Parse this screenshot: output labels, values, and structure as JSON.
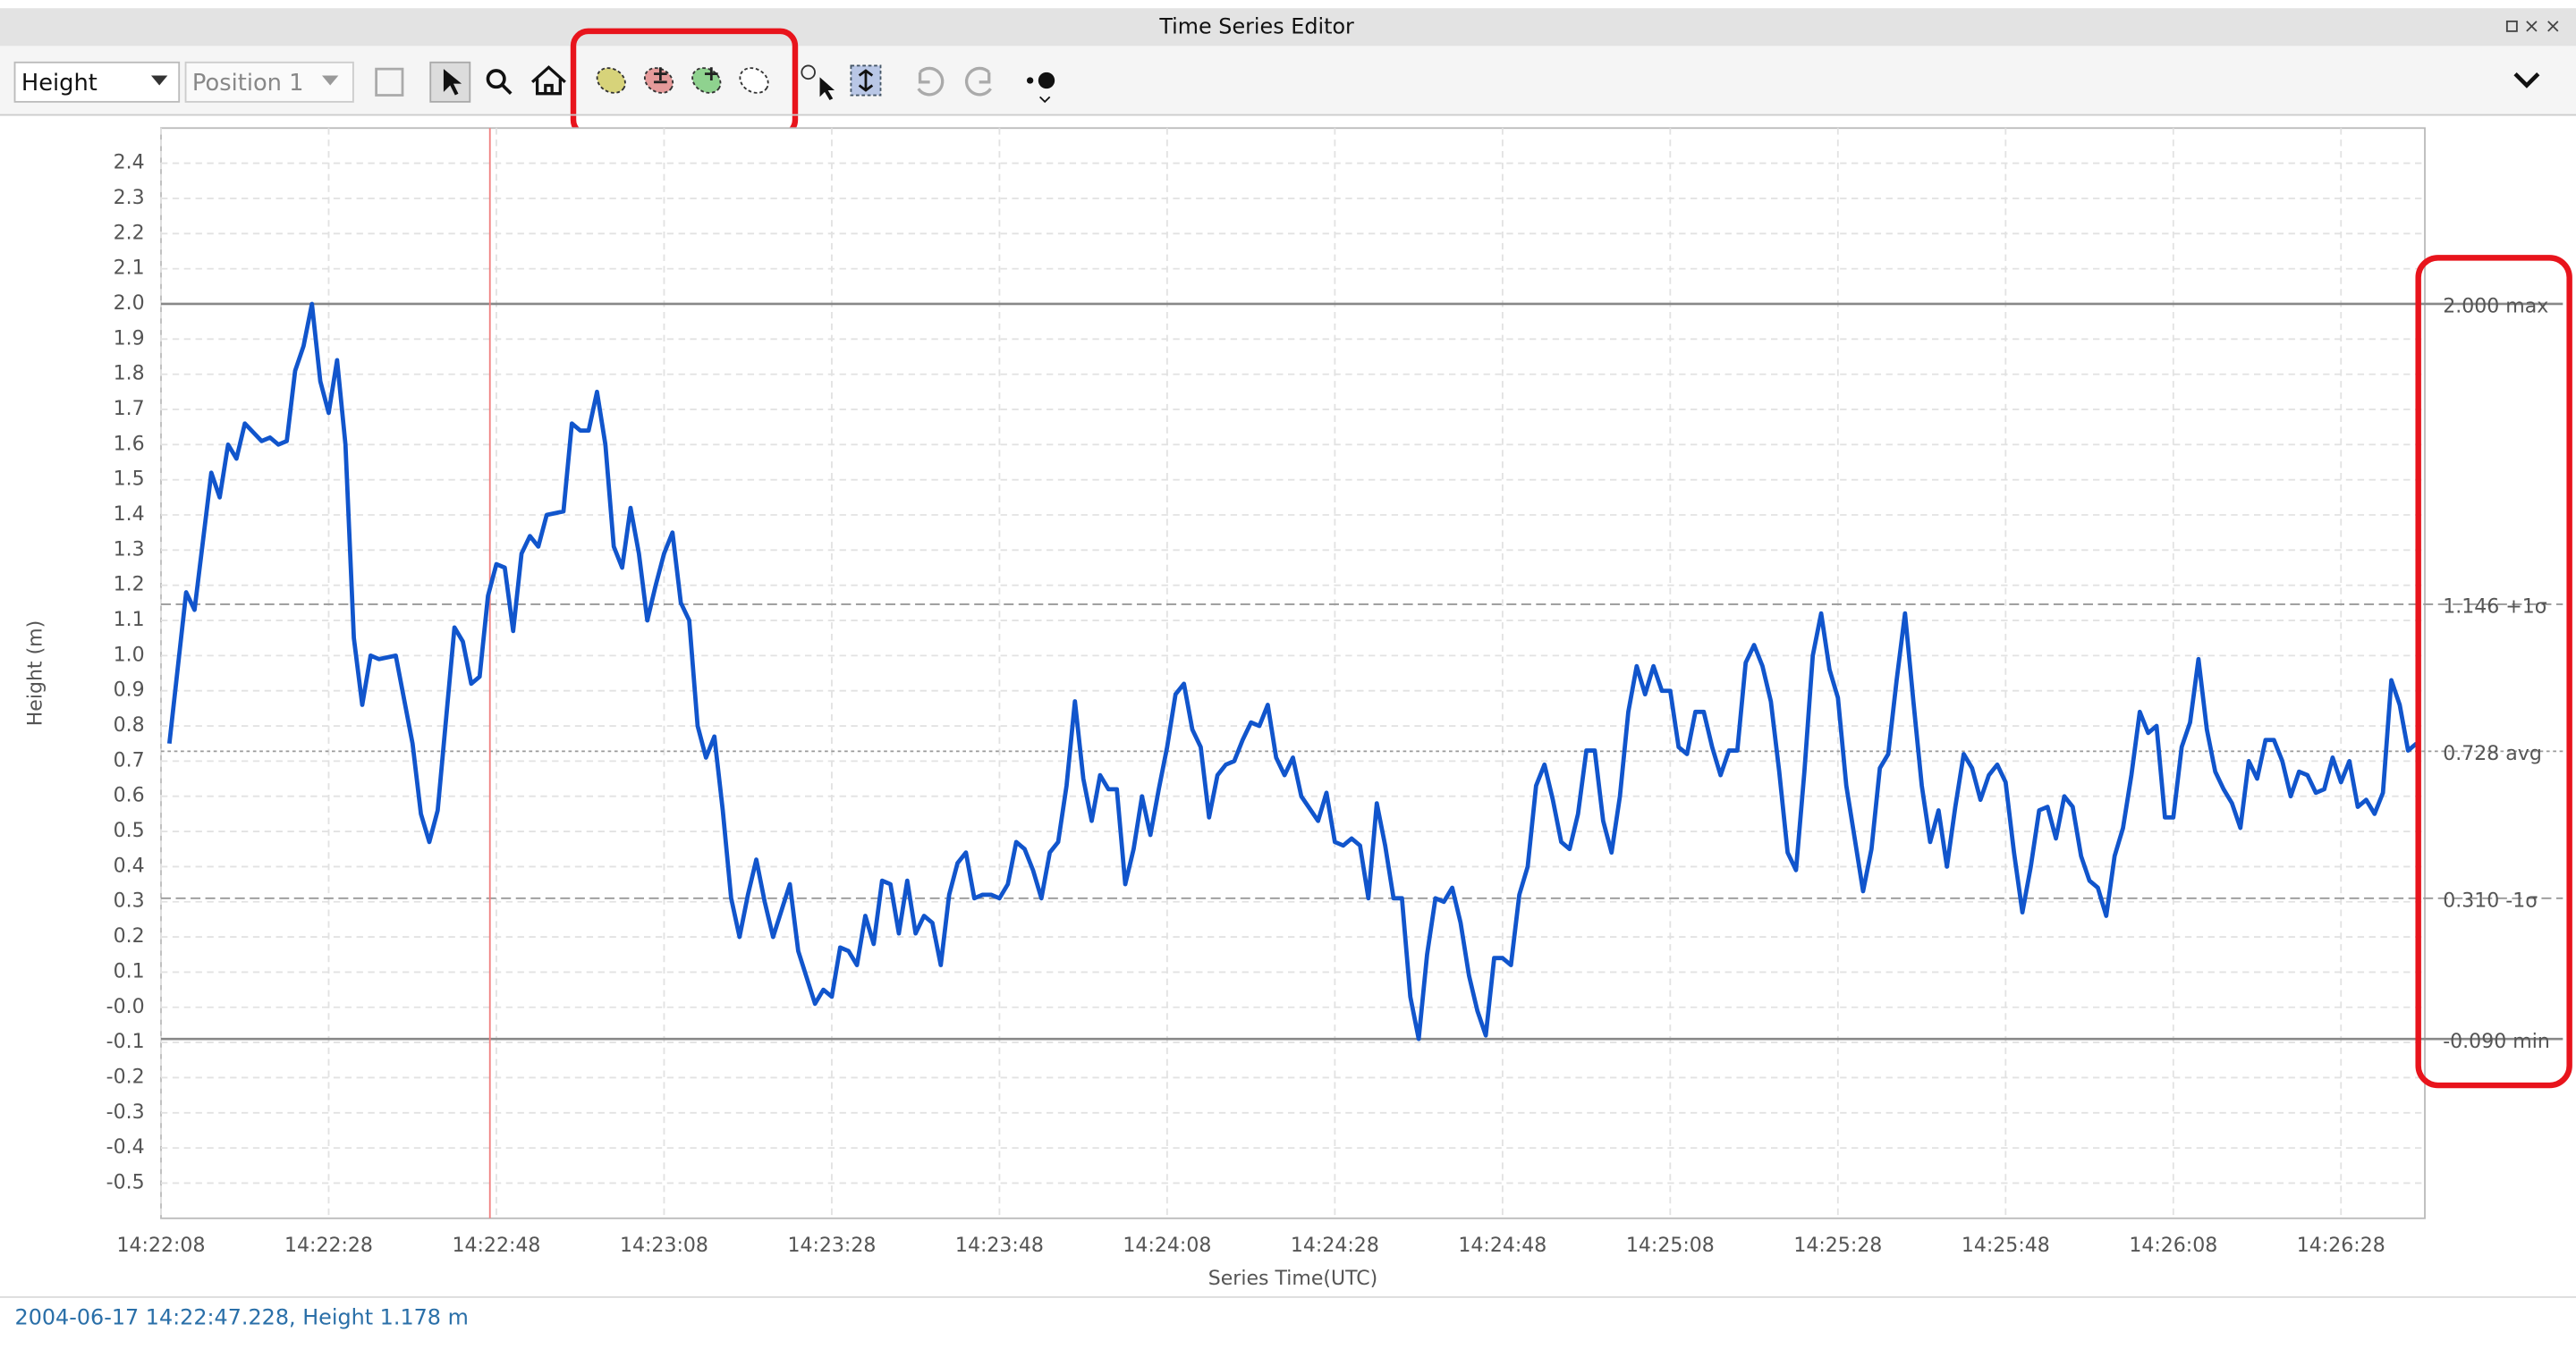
{
  "window": {
    "title": "Time Series Editor"
  },
  "toolbar": {
    "variable": "Height",
    "position": "Position 1"
  },
  "status": "2004-06-17 14:22:47.228, Height 1.178 m",
  "chart_data": {
    "type": "line",
    "y_label": "Height (m)",
    "x_label": "Series Time(UTC)",
    "grid": true,
    "xlim": [
      "14:22:08",
      "14:26:38"
    ],
    "xticks": [
      "14:22:08",
      "14:22:28",
      "14:22:48",
      "14:23:08",
      "14:23:28",
      "14:23:48",
      "14:24:08",
      "14:24:28",
      "14:24:48",
      "14:25:08",
      "14:25:28",
      "14:25:48",
      "14:26:08",
      "14:26:28"
    ],
    "ylim": [
      -0.6,
      2.5
    ],
    "yticks": [
      -0.5,
      -0.4,
      -0.3,
      -0.2,
      -0.1,
      {
        "value": 0,
        "label": "-0.0"
      },
      0.1,
      0.2,
      0.3,
      0.4,
      0.5,
      0.6,
      0.7,
      0.8,
      0.9,
      {
        "value": 1,
        "label": "1.0"
      },
      1.1,
      1.2,
      1.3,
      1.4,
      1.5,
      1.6,
      1.7,
      1.8,
      1.9,
      {
        "value": 2,
        "label": "2.0"
      },
      2.1,
      2.2,
      2.3,
      2.4
    ],
    "cursor": "14:22:47.228",
    "cursor_color": "#f08080",
    "reference_lines": [
      {
        "value": 2.0,
        "label": "2.000 max",
        "style": "solid"
      },
      {
        "value": 1.146,
        "label": "1.146 +1σ",
        "style": "dashed"
      },
      {
        "value": 0.728,
        "label": "0.728 avg",
        "style": "dotted"
      },
      {
        "value": 0.31,
        "label": "0.310 -1σ",
        "style": "dashed"
      },
      {
        "value": -0.09,
        "label": "-0.090 min",
        "style": "solid"
      }
    ],
    "x": [
      "14:22:09",
      "14:22:11",
      "14:22:12",
      "14:22:14",
      "14:22:15",
      "14:22:16",
      "14:22:17",
      "14:22:18",
      "14:22:20",
      "14:22:21",
      "14:22:22",
      "14:22:23",
      "14:22:24",
      "14:22:25",
      "14:22:26",
      "14:22:27",
      "14:22:28",
      "14:22:29",
      "14:22:30",
      "14:22:31",
      "14:22:32",
      "14:22:33",
      "14:22:34",
      "14:22:36",
      "14:22:38",
      "14:22:39",
      "14:22:40",
      "14:22:41",
      "14:22:43",
      "14:22:44",
      "14:22:45",
      "14:22:46",
      "14:22:47",
      "14:22:48",
      "14:22:49",
      "14:22:50",
      "14:22:51",
      "14:22:52",
      "14:22:53",
      "14:22:54",
      "14:22:56",
      "14:22:57",
      "14:22:58",
      "14:22:59",
      "14:23:00",
      "14:23:01",
      "14:23:02",
      "14:23:03",
      "14:23:04",
      "14:23:05",
      "14:23:06",
      "14:23:07",
      "14:23:08",
      "14:23:09",
      "14:23:10",
      "14:23:11",
      "14:23:12",
      "14:23:13",
      "14:23:14",
      "14:23:15",
      "14:23:16",
      "14:23:17",
      "14:23:18",
      "14:23:19",
      "14:23:20",
      "14:23:21",
      "14:23:23",
      "14:23:24",
      "14:23:26",
      "14:23:27",
      "14:23:28",
      "14:23:29",
      "14:23:30",
      "14:23:31",
      "14:23:32",
      "14:23:33",
      "14:23:34",
      "14:23:35",
      "14:23:36",
      "14:23:37",
      "14:23:38",
      "14:23:39",
      "14:23:40",
      "14:23:41",
      "14:23:42",
      "14:23:43",
      "14:23:44",
      "14:23:45",
      "14:23:46",
      "14:23:47",
      "14:23:48",
      "14:23:49",
      "14:23:50",
      "14:23:51",
      "14:23:52",
      "14:23:53",
      "14:23:54",
      "14:23:55",
      "14:23:56",
      "14:23:57",
      "14:23:58",
      "14:23:59",
      "14:24:00",
      "14:24:01",
      "14:24:02",
      "14:24:03",
      "14:24:04",
      "14:24:05",
      "14:24:06",
      "14:24:07",
      "14:24:08",
      "14:24:09",
      "14:24:10",
      "14:24:11",
      "14:24:12",
      "14:24:13",
      "14:24:14",
      "14:24:15",
      "14:24:16",
      "14:24:17",
      "14:24:18",
      "14:24:19",
      "14:24:20",
      "14:24:21",
      "14:24:22",
      "14:24:23",
      "14:24:24",
      "14:24:26",
      "14:24:27",
      "14:24:28",
      "14:24:29",
      "14:24:30",
      "14:24:31",
      "14:24:32",
      "14:24:33",
      "14:24:34",
      "14:24:35",
      "14:24:36",
      "14:24:37",
      "14:24:38",
      "14:24:39",
      "14:24:40",
      "14:24:41",
      "14:24:42",
      "14:24:43",
      "14:24:44",
      "14:24:45",
      "14:24:46",
      "14:24:47",
      "14:24:48",
      "14:24:49",
      "14:24:50",
      "14:24:51",
      "14:24:52",
      "14:24:53",
      "14:24:54",
      "14:24:55",
      "14:24:56",
      "14:24:57",
      "14:24:58",
      "14:24:59",
      "14:25:00",
      "14:25:01",
      "14:25:02",
      "14:25:03",
      "14:25:04",
      "14:25:05",
      "14:25:06",
      "14:25:07",
      "14:25:08",
      "14:25:09",
      "14:25:10",
      "14:25:11",
      "14:25:12",
      "14:25:13",
      "14:25:14",
      "14:25:15",
      "14:25:16",
      "14:25:17",
      "14:25:18",
      "14:25:19",
      "14:25:20",
      "14:25:21",
      "14:25:22",
      "14:25:23",
      "14:25:24",
      "14:25:25",
      "14:25:26",
      "14:25:27",
      "14:25:28",
      "14:25:29",
      "14:25:30",
      "14:25:31",
      "14:25:32",
      "14:25:33",
      "14:25:34",
      "14:25:35",
      "14:25:36",
      "14:25:37",
      "14:25:38",
      "14:25:39",
      "14:25:40",
      "14:25:41",
      "14:25:42",
      "14:25:43",
      "14:25:44",
      "14:25:45",
      "14:25:46",
      "14:25:47",
      "14:25:48",
      "14:25:49",
      "14:25:50",
      "14:25:51",
      "14:25:52",
      "14:25:53",
      "14:25:54",
      "14:25:55",
      "14:25:56",
      "14:25:57",
      "14:25:58",
      "14:25:59",
      "14:26:00",
      "14:26:01",
      "14:26:02",
      "14:26:03",
      "14:26:04",
      "14:26:05",
      "14:26:06",
      "14:26:07",
      "14:26:08",
      "14:26:09",
      "14:26:10",
      "14:26:11",
      "14:26:12",
      "14:26:13",
      "14:26:14",
      "14:26:15",
      "14:26:16",
      "14:26:17",
      "14:26:18",
      "14:26:19",
      "14:26:20",
      "14:26:21",
      "14:26:22",
      "14:26:23",
      "14:26:24",
      "14:26:25",
      "14:26:26",
      "14:26:27",
      "14:26:28",
      "14:26:29",
      "14:26:30",
      "14:26:31",
      "14:26:32",
      "14:26:33",
      "14:26:34",
      "14:26:35",
      "14:26:36",
      "14:26:37"
    ],
    "series": [
      {
        "name": "Height",
        "color": "#1155cc",
        "values": [
          0.75,
          1.18,
          1.13,
          1.52,
          1.45,
          1.6,
          1.56,
          1.66,
          1.61,
          1.62,
          1.6,
          1.61,
          1.81,
          1.88,
          2.0,
          1.78,
          1.69,
          1.84,
          1.6,
          1.05,
          0.86,
          1.0,
          0.99,
          1.0,
          0.75,
          0.55,
          0.47,
          0.56,
          1.08,
          1.04,
          0.92,
          0.94,
          1.17,
          1.26,
          1.25,
          1.07,
          1.29,
          1.34,
          1.31,
          1.4,
          1.41,
          1.66,
          1.64,
          1.64,
          1.75,
          1.6,
          1.31,
          1.25,
          1.42,
          1.29,
          1.1,
          1.2,
          1.29,
          1.35,
          1.15,
          1.1,
          0.8,
          0.71,
          0.77,
          0.56,
          0.31,
          0.2,
          0.32,
          0.42,
          0.3,
          0.2,
          0.35,
          0.16,
          0.01,
          0.05,
          0.03,
          0.17,
          0.16,
          0.12,
          0.26,
          0.18,
          0.36,
          0.35,
          0.21,
          0.36,
          0.21,
          0.26,
          0.24,
          0.12,
          0.32,
          0.41,
          0.44,
          0.31,
          0.32,
          0.32,
          0.31,
          0.35,
          0.47,
          0.45,
          0.39,
          0.31,
          0.44,
          0.47,
          0.63,
          0.87,
          0.65,
          0.53,
          0.66,
          0.62,
          0.62,
          0.35,
          0.45,
          0.6,
          0.49,
          0.62,
          0.74,
          0.89,
          0.92,
          0.79,
          0.74,
          0.54,
          0.66,
          0.69,
          0.7,
          0.76,
          0.81,
          0.8,
          0.86,
          0.71,
          0.66,
          0.71,
          0.6,
          0.53,
          0.61,
          0.47,
          0.46,
          0.48,
          0.46,
          0.31,
          0.58,
          0.46,
          0.31,
          0.31,
          0.03,
          -0.09,
          0.15,
          0.31,
          0.3,
          0.34,
          0.24,
          0.09,
          -0.01,
          -0.08,
          0.14,
          0.14,
          0.12,
          0.32,
          0.4,
          0.63,
          0.69,
          0.59,
          0.47,
          0.45,
          0.55,
          0.73,
          0.73,
          0.53,
          0.44,
          0.6,
          0.84,
          0.97,
          0.89,
          0.97,
          0.9,
          0.9,
          0.74,
          0.72,
          0.84,
          0.84,
          0.74,
          0.66,
          0.73,
          0.73,
          0.98,
          1.03,
          0.97,
          0.87,
          0.67,
          0.44,
          0.39,
          0.67,
          1.0,
          1.12,
          0.96,
          0.88,
          0.63,
          0.48,
          0.33,
          0.45,
          0.68,
          0.72,
          0.93,
          1.12,
          0.87,
          0.63,
          0.47,
          0.56,
          0.4,
          0.57,
          0.72,
          0.68,
          0.59,
          0.66,
          0.69,
          0.64,
          0.44,
          0.27,
          0.4,
          0.56,
          0.57,
          0.48,
          0.6,
          0.57,
          0.43,
          0.36,
          0.34,
          0.26,
          0.43,
          0.51,
          0.66,
          0.84,
          0.78,
          0.8,
          0.54,
          0.54,
          0.74,
          0.81,
          0.99,
          0.79,
          0.67,
          0.62,
          0.58,
          0.51,
          0.7,
          0.65,
          0.76,
          0.76,
          0.7,
          0.6,
          0.67,
          0.66,
          0.61,
          0.62,
          0.71,
          0.64,
          0.7,
          0.57,
          0.59,
          0.55,
          0.61,
          0.93,
          0.86,
          0.73,
          0.75
        ]
      }
    ]
  }
}
